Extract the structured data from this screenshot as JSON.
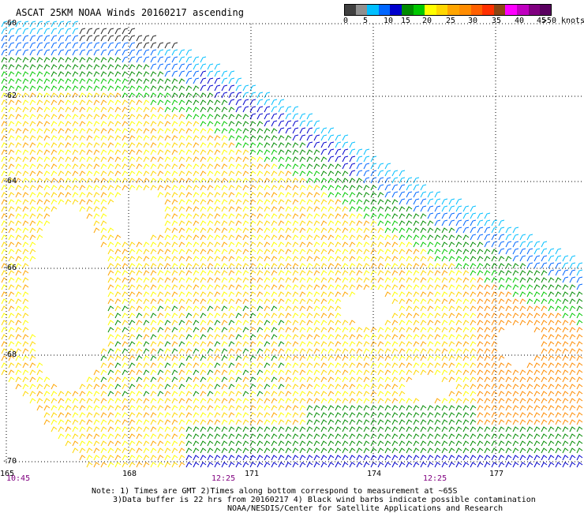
{
  "title": "ASCAT 25KM NOAA Winds 20160217 ascending",
  "legend": {
    "unit": ">50 knots",
    "segments": [
      {
        "color": "#404040"
      },
      {
        "color": "#909090"
      },
      {
        "color": "#00bfff"
      },
      {
        "color": "#0066ff"
      },
      {
        "color": "#0000cd"
      },
      {
        "color": "#008b00"
      },
      {
        "color": "#00c800"
      },
      {
        "color": "#ffff00"
      },
      {
        "color": "#ffd700"
      },
      {
        "color": "#ffa500"
      },
      {
        "color": "#ff8c00"
      },
      {
        "color": "#ff6000"
      },
      {
        "color": "#ff3000"
      },
      {
        "color": "#8b4513"
      },
      {
        "color": "#ff00ff"
      },
      {
        "color": "#c000c0"
      },
      {
        "color": "#800080"
      },
      {
        "color": "#5a0060"
      }
    ],
    "ticks": [
      "0",
      "5",
      "10",
      "15",
      "20",
      "25",
      "30",
      "35",
      "40",
      "45"
    ]
  },
  "map": {
    "lat_labels": [
      "-60",
      "-62",
      "-64",
      "-66",
      "-68",
      "-70"
    ],
    "lon_labels": [
      "165",
      "168",
      "171",
      "174",
      "177"
    ],
    "time_labels": [
      "10:45",
      "12:25",
      "12:25"
    ]
  },
  "notes": [
    "Note: 1) Times are GMT 2)Times along bottom correspond to measurement at ~65S",
    "3)Data buffer is 22 hrs from 20160217 4) Black wind barbs indicate possible contamination",
    "NOAA/NESDIS/Center for Satellite Applications and Research"
  ]
}
